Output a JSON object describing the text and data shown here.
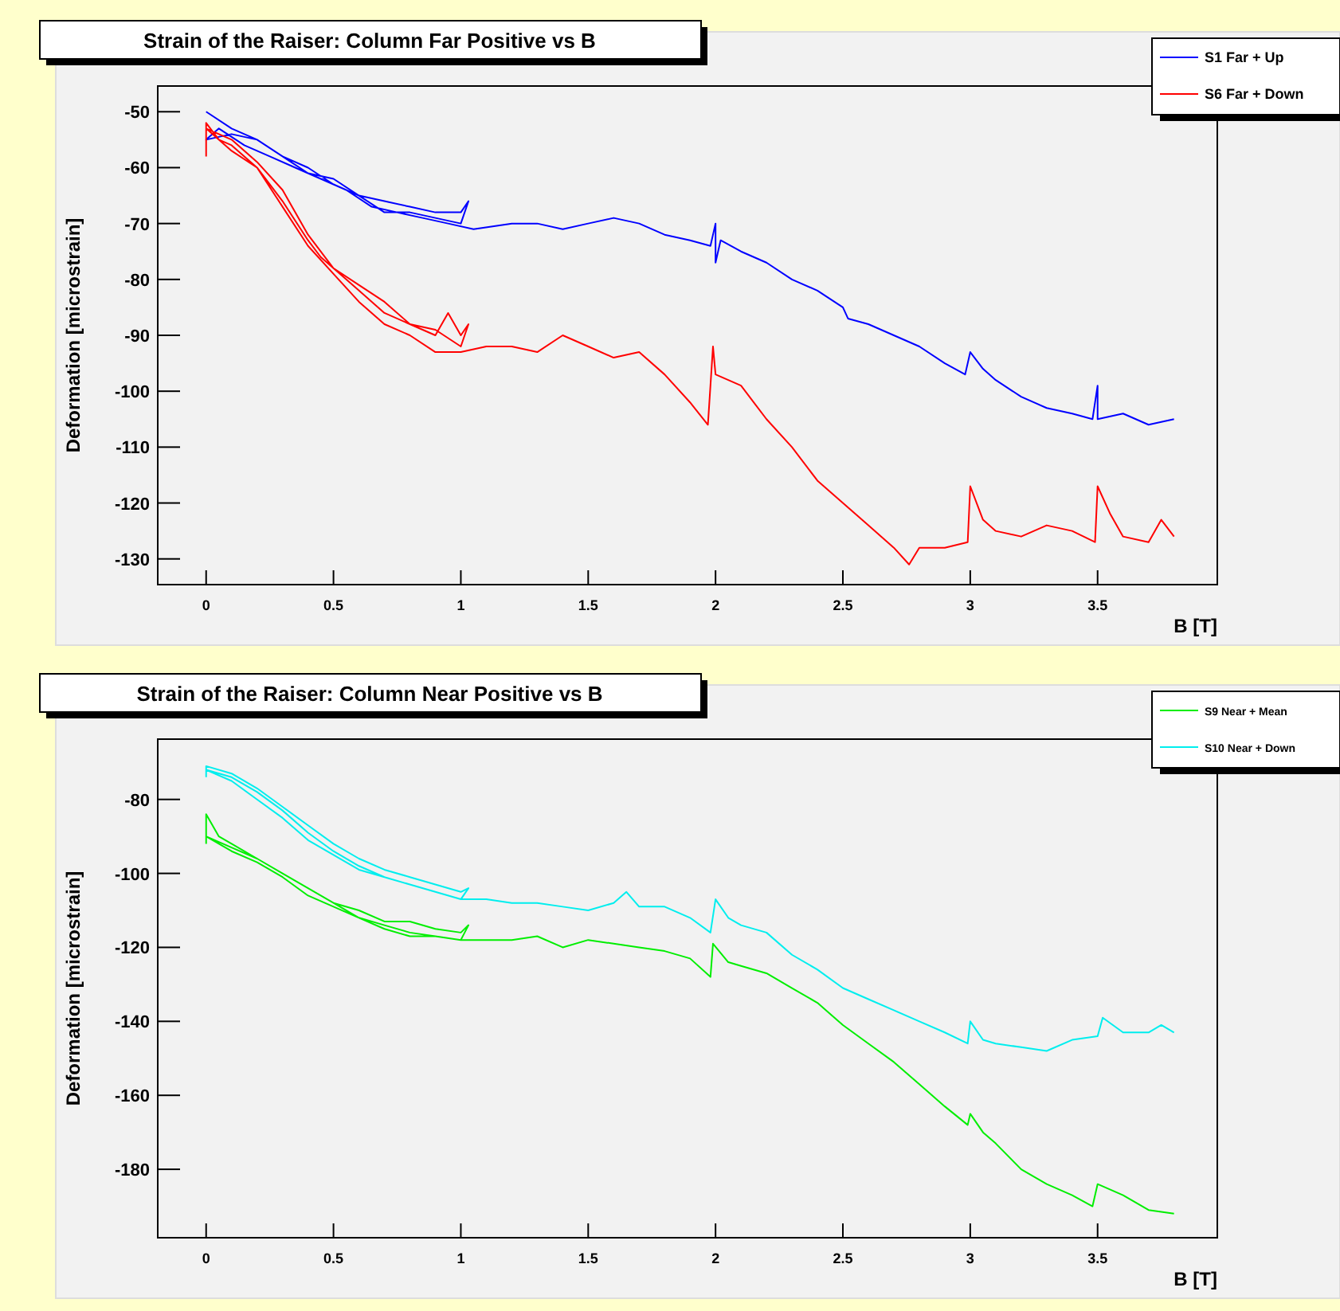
{
  "chart_data": [
    {
      "type": "line",
      "title": "Strain of the Raiser: Column Far Positive vs B",
      "xlabel": "B [T]",
      "ylabel": "Deformation [microstrain]",
      "xlim": [
        -0.19,
        3.97
      ],
      "ylim": [
        -134.6,
        -45.4
      ],
      "xticks": [
        0,
        0.5,
        1,
        1.5,
        2,
        2.5,
        3,
        3.5
      ],
      "yticks": [
        -50,
        -60,
        -70,
        -80,
        -90,
        -100,
        -110,
        -120,
        -130
      ],
      "grid": false,
      "legend": "top right",
      "marker": "none",
      "line_style": "solid",
      "series": [
        {
          "name": "S1 Far + Up",
          "color": "#0000ff",
          "x": [
            0,
            0.1,
            0.2,
            0.3,
            0.4,
            0.5,
            0.6,
            0.7,
            0.8,
            0.9,
            1.0,
            1.03,
            1.0,
            0.9,
            0.8,
            0.7,
            0.6,
            0.5,
            0.4,
            0.3,
            0.2,
            0.1,
            0,
            0.05,
            0.15,
            0.25,
            0.35,
            0.45,
            0.55,
            0.65,
            0.75,
            0.85,
            0.95,
            1.05,
            1.2,
            1.3,
            1.4,
            1.5,
            1.6,
            1.7,
            1.8,
            1.9,
            1.98,
            2.0,
            2.0,
            2.02,
            2.1,
            2.2,
            2.3,
            2.4,
            2.5,
            2.52,
            2.6,
            2.7,
            2.8,
            2.9,
            2.98,
            3.0,
            3.05,
            3.1,
            3.2,
            3.3,
            3.4,
            3.48,
            3.5,
            3.5,
            3.6,
            3.7,
            3.8
          ],
          "values": [
            -50,
            -53,
            -55,
            -58,
            -61,
            -62,
            -65,
            -66,
            -67,
            -68,
            -68,
            -66,
            -70,
            -69,
            -68,
            -68,
            -65,
            -63,
            -60,
            -58,
            -55,
            -54,
            -55,
            -53,
            -56,
            -58,
            -60,
            -62,
            -64,
            -67,
            -68,
            -69,
            -70,
            -71,
            -70,
            -70,
            -71,
            -70,
            -69,
            -70,
            -72,
            -73,
            -74,
            -70,
            -77,
            -73,
            -75,
            -77,
            -80,
            -82,
            -85,
            -87,
            -88,
            -90,
            -92,
            -95,
            -97,
            -93,
            -96,
            -98,
            -101,
            -103,
            -104,
            -105,
            -99,
            -105,
            -104,
            -106,
            -105
          ]
        },
        {
          "name": "S6 Far + Down",
          "color": "#ff0000",
          "x": [
            0,
            0,
            0.05,
            0.1,
            0.2,
            0.3,
            0.4,
            0.45,
            0.5,
            0.6,
            0.7,
            0.8,
            0.9,
            0.95,
            1.0,
            1.03,
            1.0,
            0.9,
            0.8,
            0.7,
            0.6,
            0.5,
            0.4,
            0.3,
            0.2,
            0.1,
            0,
            0.1,
            0.2,
            0.3,
            0.4,
            0.5,
            0.6,
            0.7,
            0.8,
            0.9,
            1.0,
            1.1,
            1.2,
            1.3,
            1.4,
            1.5,
            1.6,
            1.7,
            1.8,
            1.9,
            1.97,
            1.99,
            2.0,
            2.1,
            2.2,
            2.3,
            2.4,
            2.5,
            2.6,
            2.7,
            2.76,
            2.8,
            2.9,
            2.99,
            3.0,
            3.05,
            3.1,
            3.2,
            3.3,
            3.4,
            3.49,
            3.5,
            3.55,
            3.6,
            3.7,
            3.75,
            3.8
          ],
          "values": [
            -58,
            -52,
            -55,
            -56,
            -60,
            -66,
            -73,
            -76,
            -78,
            -82,
            -86,
            -88,
            -90,
            -86,
            -90,
            -88,
            -92,
            -89,
            -88,
            -84,
            -81,
            -78,
            -72,
            -64,
            -59,
            -55,
            -53,
            -57,
            -60,
            -67,
            -74,
            -79,
            -84,
            -88,
            -90,
            -93,
            -93,
            -92,
            -92,
            -93,
            -90,
            -92,
            -94,
            -93,
            -97,
            -102,
            -106,
            -92,
            -97,
            -99,
            -105,
            -110,
            -116,
            -120,
            -124,
            -128,
            -131,
            -128,
            -128,
            -127,
            -117,
            -123,
            -125,
            -126,
            -124,
            -125,
            -127,
            -117,
            -122,
            -126,
            -127,
            -123,
            -126
          ]
        }
      ]
    },
    {
      "type": "line",
      "title": "Strain of the Raiser: Column Near Positive vs B",
      "xlabel": "B [T]",
      "ylabel": "Deformation [microstrain]",
      "xlim": [
        -0.19,
        3.97
      ],
      "ylim": [
        -198.5,
        -63.7
      ],
      "xticks": [
        0,
        0.5,
        1,
        1.5,
        2,
        2.5,
        3,
        3.5
      ],
      "yticks": [
        -80,
        -100,
        -120,
        -140,
        -160,
        -180
      ],
      "grid": false,
      "legend": "top right",
      "marker": "none",
      "line_style": "solid",
      "series": [
        {
          "name": "S9 Near + Mean",
          "color": "#00ee00",
          "x": [
            0,
            0,
            0.05,
            0.1,
            0.2,
            0.3,
            0.4,
            0.5,
            0.6,
            0.7,
            0.8,
            0.9,
            1.0,
            1.03,
            1.0,
            0.9,
            0.8,
            0.7,
            0.6,
            0.5,
            0.4,
            0.3,
            0.2,
            0.1,
            0,
            0.1,
            0.2,
            0.3,
            0.4,
            0.5,
            0.6,
            0.7,
            0.8,
            0.9,
            1.0,
            1.1,
            1.2,
            1.3,
            1.4,
            1.5,
            1.6,
            1.7,
            1.8,
            1.9,
            1.98,
            1.99,
            2.05,
            2.1,
            2.2,
            2.3,
            2.4,
            2.5,
            2.6,
            2.7,
            2.8,
            2.9,
            2.99,
            3.0,
            3.05,
            3.1,
            3.2,
            3.3,
            3.4,
            3.48,
            3.5,
            3.6,
            3.7,
            3.8
          ],
          "values": [
            -92,
            -84,
            -90,
            -92,
            -96,
            -100,
            -104,
            -108,
            -110,
            -113,
            -113,
            -115,
            -116,
            -114,
            -118,
            -117,
            -116,
            -114,
            -112,
            -108,
            -104,
            -100,
            -96,
            -93,
            -90,
            -94,
            -97,
            -101,
            -106,
            -109,
            -112,
            -115,
            -117,
            -117,
            -118,
            -118,
            -118,
            -117,
            -120,
            -118,
            -119,
            -120,
            -121,
            -123,
            -128,
            -119,
            -124,
            -125,
            -127,
            -131,
            -135,
            -141,
            -146,
            -151,
            -157,
            -163,
            -168,
            -165,
            -170,
            -173,
            -180,
            -184,
            -187,
            -190,
            -184,
            -187,
            -191,
            -192
          ]
        },
        {
          "name": "S10 Near + Down",
          "color": "#00eeee",
          "x": [
            0,
            0,
            0.1,
            0.2,
            0.3,
            0.4,
            0.5,
            0.6,
            0.7,
            0.8,
            0.9,
            1.0,
            1.03,
            1.0,
            0.9,
            0.8,
            0.7,
            0.6,
            0.5,
            0.4,
            0.3,
            0.2,
            0.1,
            0,
            0.1,
            0.2,
            0.3,
            0.4,
            0.5,
            0.6,
            0.7,
            0.8,
            0.9,
            1.0,
            1.1,
            1.2,
            1.3,
            1.4,
            1.5,
            1.6,
            1.65,
            1.7,
            1.8,
            1.9,
            1.98,
            2.0,
            2.05,
            2.1,
            2.2,
            2.3,
            2.4,
            2.5,
            2.6,
            2.7,
            2.8,
            2.9,
            2.99,
            3.0,
            3.05,
            3.1,
            3.2,
            3.3,
            3.4,
            3.5,
            3.52,
            3.6,
            3.7,
            3.75,
            3.8
          ],
          "values": [
            -74,
            -71,
            -73,
            -77,
            -82,
            -87,
            -92,
            -96,
            -99,
            -101,
            -103,
            -105,
            -104,
            -107,
            -105,
            -103,
            -101,
            -99,
            -95,
            -91,
            -85,
            -80,
            -75,
            -72,
            -74,
            -78,
            -83,
            -89,
            -94,
            -98,
            -101,
            -103,
            -105,
            -107,
            -107,
            -108,
            -108,
            -109,
            -110,
            -108,
            -105,
            -109,
            -109,
            -112,
            -116,
            -107,
            -112,
            -114,
            -116,
            -122,
            -126,
            -131,
            -134,
            -137,
            -140,
            -143,
            -146,
            -140,
            -145,
            -146,
            -147,
            -148,
            -145,
            -144,
            -139,
            -143,
            -143,
            -141,
            -143
          ]
        }
      ]
    }
  ]
}
